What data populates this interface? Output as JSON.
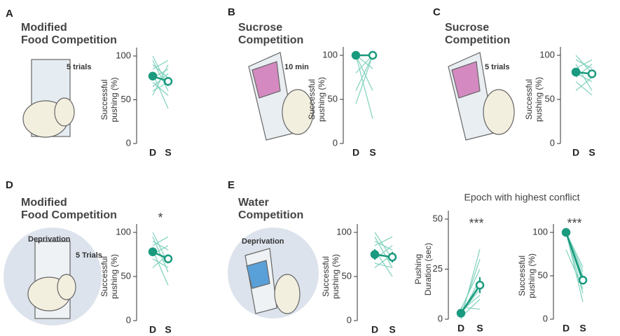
{
  "chart_data": [
    {
      "type": "paired",
      "panel": "A",
      "title": [
        "Modified",
        "Food Competition"
      ],
      "annotations": [
        "5 trials"
      ],
      "ylabel": [
        "Successful",
        "pushing (%)"
      ],
      "categories": [
        "D",
        "S"
      ],
      "ylim": [
        0,
        100
      ],
      "yticks": [
        0,
        50,
        100
      ],
      "values": [
        77,
        71
      ],
      "errors": [
        4,
        4
      ],
      "color": "#1a9a7e",
      "subject_color": "#7fd1bd",
      "subjects": [
        [
          95,
          60
        ],
        [
          90,
          75
        ],
        [
          85,
          95
        ],
        [
          80,
          40
        ],
        [
          75,
          85
        ],
        [
          70,
          55
        ],
        [
          65,
          80
        ],
        [
          60,
          70
        ],
        [
          100,
          65
        ],
        [
          55,
          90
        ]
      ]
    },
    {
      "type": "paired",
      "panel": "B",
      "title": [
        "Sucrose",
        "Competition"
      ],
      "annotations": [
        "10 min"
      ],
      "ylabel": [
        "Successful",
        "pushing (%)"
      ],
      "categories": [
        "D",
        "S"
      ],
      "ylim": [
        0,
        100
      ],
      "yticks": [
        0,
        50,
        100
      ],
      "values": [
        100,
        100
      ],
      "errors": [
        0,
        0
      ],
      "color": "#1a9a7e",
      "subject_color": "#7fd1bd",
      "subjects": [
        [
          100,
          100
        ],
        [
          100,
          60
        ],
        [
          100,
          28
        ],
        [
          45,
          100
        ],
        [
          60,
          100
        ],
        [
          80,
          100
        ],
        [
          100,
          85
        ]
      ]
    },
    {
      "type": "paired",
      "panel": "C",
      "title": [
        "Sucrose",
        "Competition"
      ],
      "annotations": [
        "5 trials"
      ],
      "ylabel": [
        "Successful",
        "pushing (%)"
      ],
      "categories": [
        "D",
        "S"
      ],
      "ylim": [
        0,
        100
      ],
      "yticks": [
        0,
        50,
        100
      ],
      "values": [
        81,
        79
      ],
      "errors": [
        4,
        4
      ],
      "color": "#1a9a7e",
      "subject_color": "#7fd1bd",
      "subjects": [
        [
          95,
          85
        ],
        [
          90,
          60
        ],
        [
          85,
          95
        ],
        [
          80,
          70
        ],
        [
          75,
          90
        ],
        [
          70,
          55
        ],
        [
          100,
          80
        ],
        [
          60,
          75
        ]
      ]
    },
    {
      "type": "paired",
      "panel": "D",
      "title": [
        "Modified",
        "Food Competition"
      ],
      "annotations": [
        "Deprivation",
        "5 Trials"
      ],
      "significance": "*",
      "ylabel": [
        "Successful",
        "pushing (%)"
      ],
      "categories": [
        "D",
        "S"
      ],
      "ylim": [
        0,
        100
      ],
      "yticks": [
        0,
        50,
        100
      ],
      "values": [
        78,
        70
      ],
      "errors": [
        5,
        5
      ],
      "color": "#1a9a7e",
      "subject_color": "#7fd1bd",
      "subjects": [
        [
          95,
          55
        ],
        [
          90,
          80
        ],
        [
          85,
          95
        ],
        [
          80,
          40
        ],
        [
          75,
          85
        ],
        [
          70,
          60
        ],
        [
          60,
          75
        ],
        [
          100,
          65
        ]
      ]
    },
    {
      "type": "paired",
      "panel": "E",
      "title": [
        "Water",
        "Competition"
      ],
      "annotations": [
        "Deprivation"
      ],
      "ylabel": [
        "Successful",
        "pushing (%)"
      ],
      "categories": [
        "D",
        "S"
      ],
      "ylim": [
        0,
        100
      ],
      "yticks": [
        0,
        50,
        100
      ],
      "values": [
        75,
        72
      ],
      "errors": [
        6,
        6
      ],
      "color": "#1a9a7e",
      "subject_color": "#7fd1bd",
      "subjects": [
        [
          95,
          60
        ],
        [
          90,
          80
        ],
        [
          85,
          95
        ],
        [
          80,
          50
        ],
        [
          70,
          85
        ],
        [
          65,
          60
        ],
        [
          60,
          75
        ],
        [
          100,
          70
        ]
      ]
    },
    {
      "type": "paired",
      "subtitle": "Epoch with highest conflict",
      "significance": "***",
      "ylabel": [
        "Pushing",
        "Duration (sec)"
      ],
      "categories": [
        "D",
        "S"
      ],
      "ylim": [
        0,
        50
      ],
      "yticks": [
        0,
        25,
        50
      ],
      "values": [
        3,
        17
      ],
      "errors": [
        1,
        4
      ],
      "color": "#1a9a7e",
      "subject_color": "#7fd1bd",
      "subjects": [
        [
          0,
          35
        ],
        [
          2,
          30
        ],
        [
          5,
          25
        ],
        [
          3,
          15
        ],
        [
          1,
          10
        ],
        [
          6,
          5
        ],
        [
          2,
          20
        ],
        [
          4,
          12
        ]
      ]
    },
    {
      "type": "paired",
      "significance": "***",
      "ylabel": [
        "Successful",
        "pushing (%)"
      ],
      "categories": [
        "D",
        "S"
      ],
      "ylim": [
        0,
        100
      ],
      "yticks": [
        0,
        50,
        100
      ],
      "values": [
        100,
        45
      ],
      "errors": [
        0,
        5
      ],
      "color": "#1a9a7e",
      "subject_color": "#7fd1bd",
      "subjects": [
        [
          100,
          60
        ],
        [
          100,
          40
        ],
        [
          100,
          30
        ],
        [
          100,
          50
        ],
        [
          100,
          20
        ],
        [
          80,
          35
        ],
        [
          100,
          55
        ]
      ]
    }
  ]
}
